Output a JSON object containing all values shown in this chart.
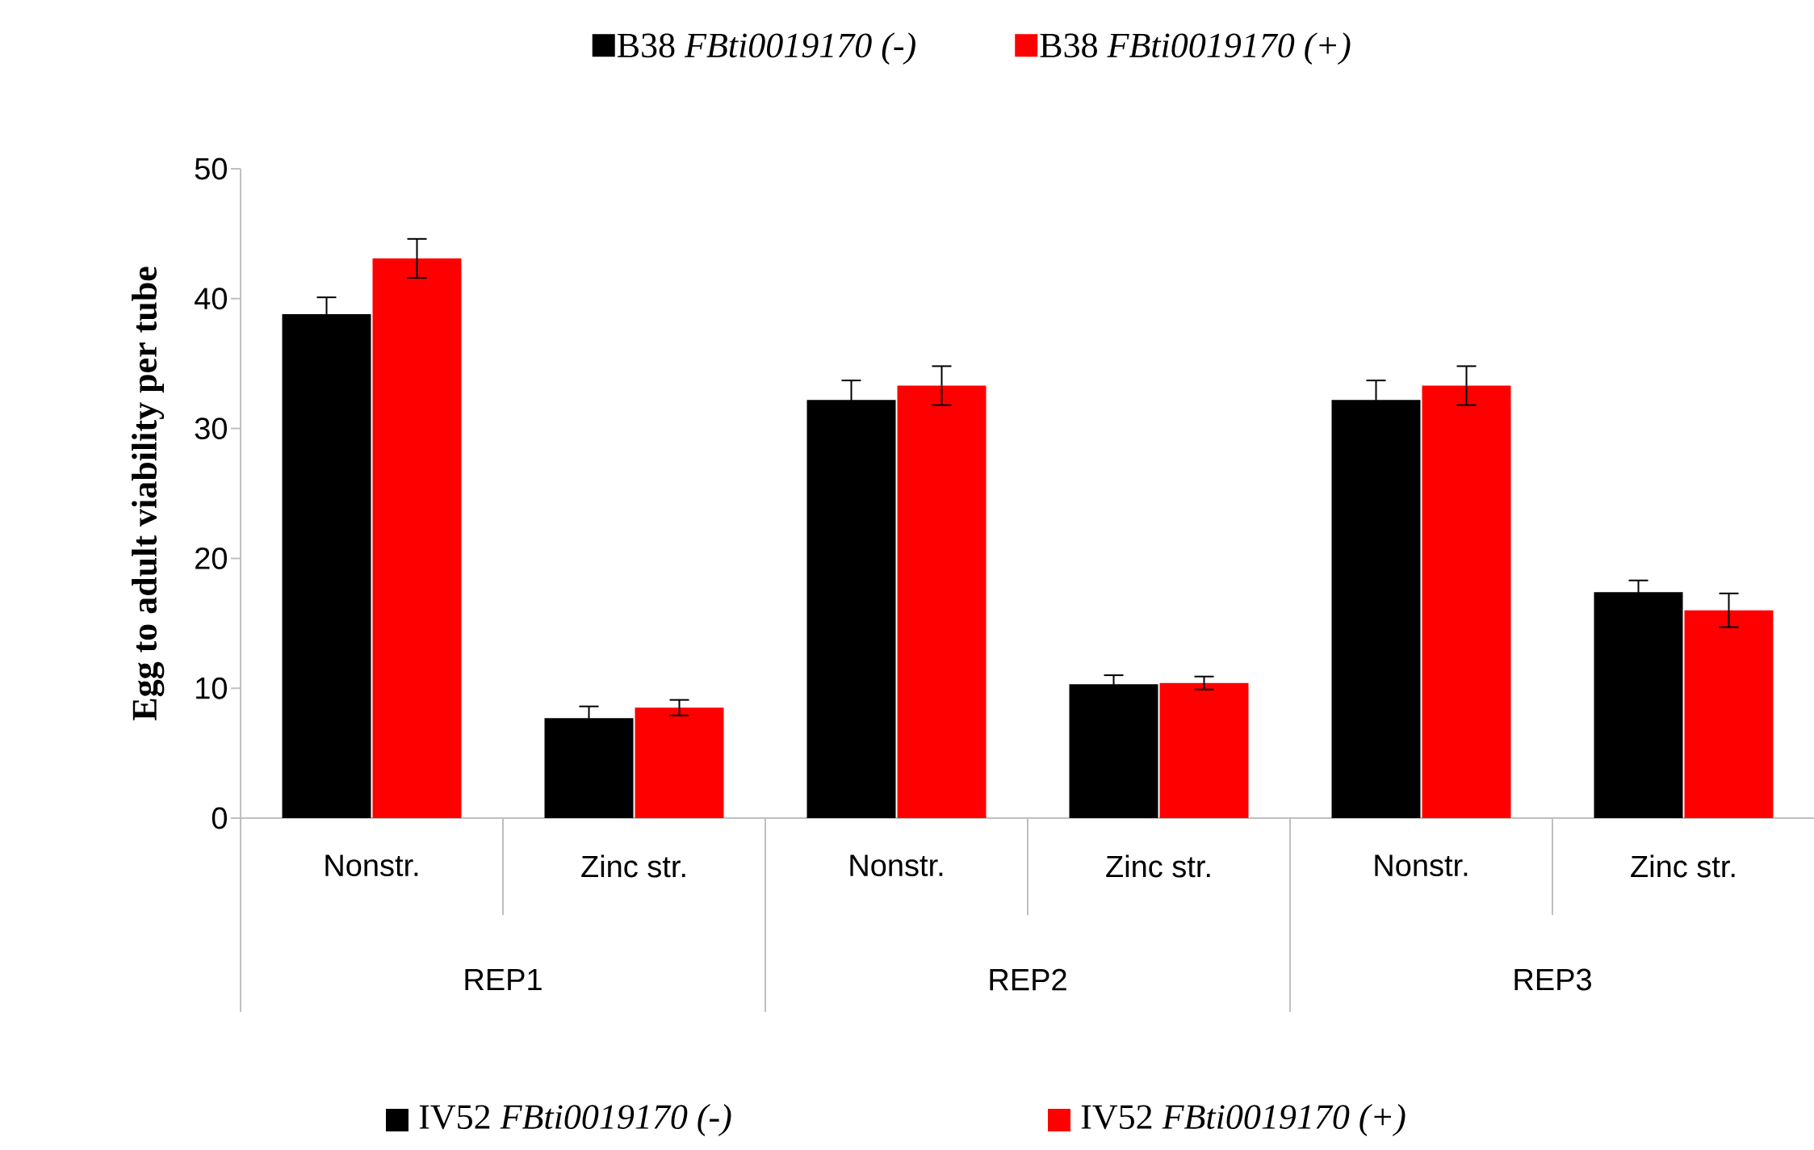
{
  "chart_data": {
    "type": "bar",
    "ylabel": "Egg to adult viability per tube",
    "categories": [
      "Nonstr.",
      "Zinc str.",
      "Nonstr.",
      "Zinc str.",
      "Nonstr.",
      "Zinc str."
    ],
    "series": [
      {
        "name": "B38 *FBti0019170 (-)*",
        "color": "#000000",
        "values": [
          38.8,
          7.7,
          32.2,
          10.3,
          32.2,
          17.4
        ],
        "errors": [
          1.3,
          0.9,
          1.5,
          0.7,
          1.5,
          0.9
        ]
      },
      {
        "name": "B38 *FBti0019170 (+)*",
        "color": "#ff0000",
        "values": [
          43.1,
          8.5,
          33.3,
          10.4,
          33.3,
          16.0
        ],
        "errors": [
          1.5,
          0.6,
          1.5,
          0.5,
          1.5,
          1.3
        ]
      }
    ],
    "annotations": [
      "REP1",
      "REP2",
      "REP3",
      "IV52 *FBti0019170 (-)*",
      "IV52 *FBti0019170 (+)*"
    ],
    "ylim": [
      0,
      50
    ],
    "yticks": [
      0,
      10,
      20,
      30,
      40,
      50
    ],
    "grid": false,
    "legend": "top"
  }
}
